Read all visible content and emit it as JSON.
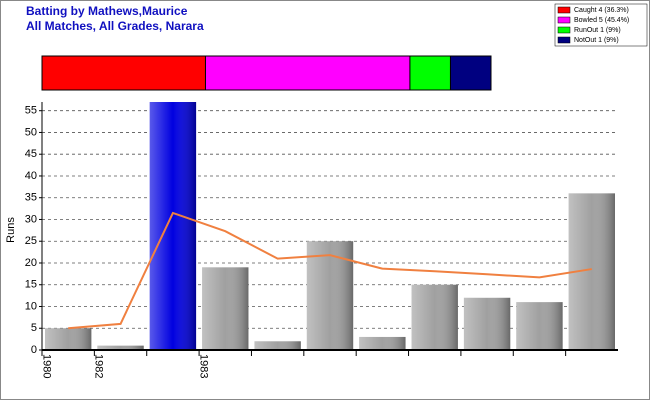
{
  "chart_data": [
    {
      "type": "stacked_bar",
      "title": "Batting by Mathews,Maurice",
      "subtitle": "All Matches, All Grades, Narara",
      "xlim": [
        0,
        99.7
      ],
      "legend": "top-right",
      "series": [
        {
          "name": "Caught 4 (36.3%)",
          "color": "#ff0000",
          "values": [
            36.3
          ]
        },
        {
          "name": "Bowled 5 (45.4%)",
          "color": "#ff00ff",
          "values": [
            45.4
          ]
        },
        {
          "name": "RunOut 1 (9%)",
          "color": "#00ff00",
          "values": [
            9
          ]
        },
        {
          "name": "NotOut 1 (9%)",
          "color": "#000080",
          "values": [
            9
          ]
        }
      ]
    },
    {
      "type": "bar",
      "ylabel": "Runs",
      "categories": [
        "1980",
        "1982",
        null,
        "1983",
        null,
        null,
        null,
        null,
        null,
        null,
        null
      ],
      "values": [
        5,
        1,
        57,
        19,
        2,
        25,
        3,
        15,
        12,
        11,
        36
      ],
      "colors": [
        "#a0a0a0",
        "#a0a0a0",
        "#0000e0",
        "#a0a0a0",
        "#a0a0a0",
        "#a0a0a0",
        "#a0a0a0",
        "#a0a0a0",
        "#a0a0a0",
        "#a0a0a0",
        "#a0a0a0"
      ],
      "line": {
        "color": "#f08040",
        "values": [
          5,
          6,
          31.5,
          27.3,
          21,
          21.8,
          18.7,
          18.1,
          17.4,
          16.7,
          18.6
        ]
      },
      "ylim": [
        0,
        57
      ],
      "yticks": [
        0,
        5,
        10,
        15,
        20,
        25,
        30,
        35,
        40,
        45,
        50,
        55
      ],
      "grid": true
    }
  ]
}
